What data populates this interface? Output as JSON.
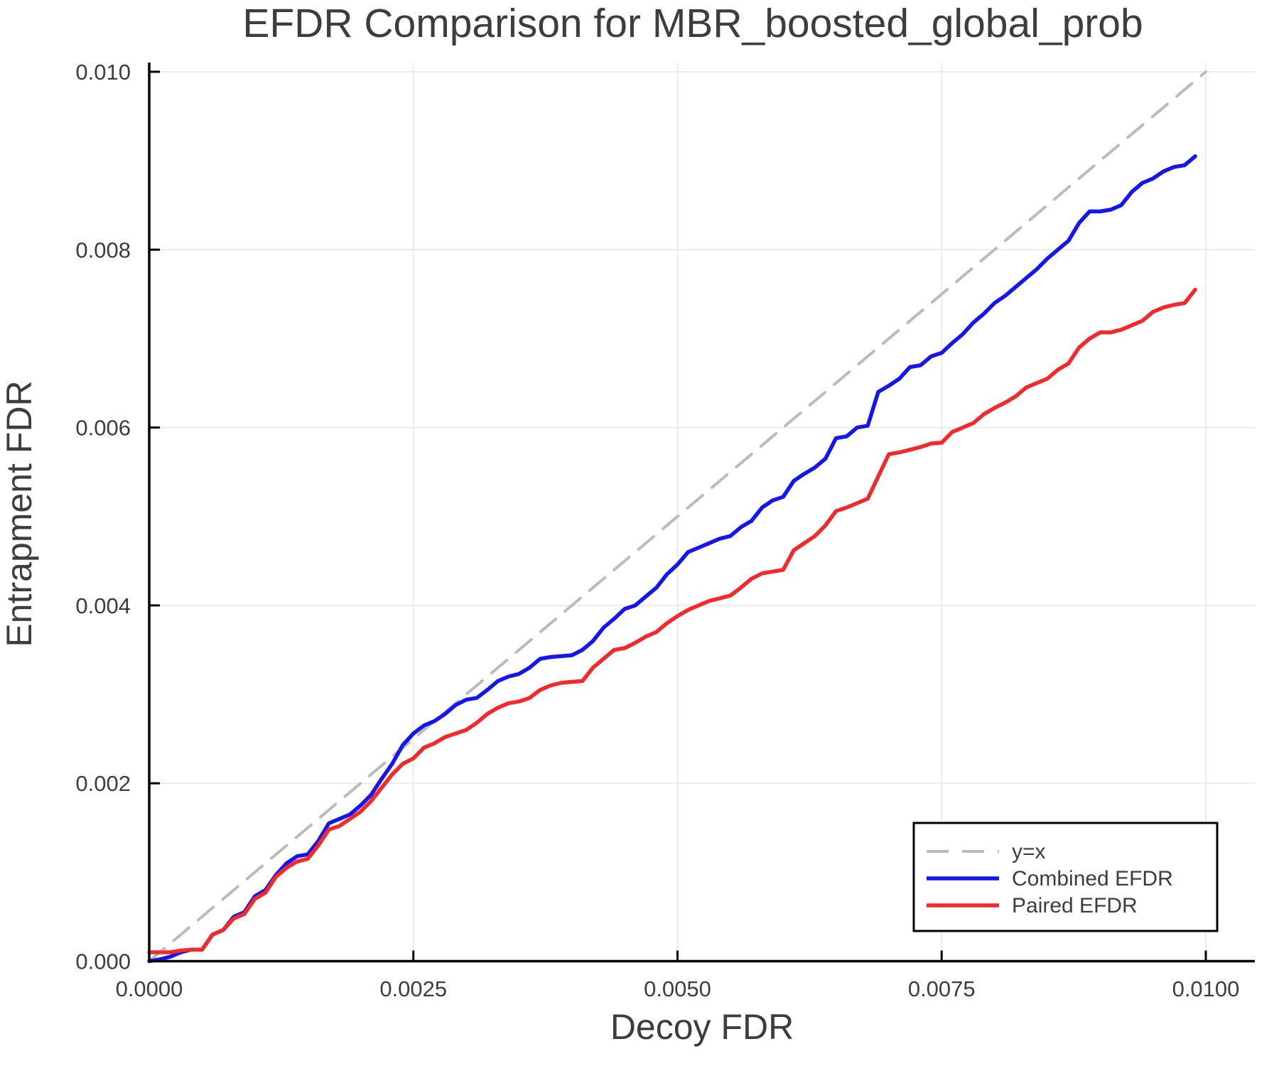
{
  "chart_data": {
    "type": "line",
    "title": "EFDR Comparison for MBR_boosted_global_prob",
    "xlabel": "Decoy FDR",
    "ylabel": "Entrapment FDR",
    "xlim": [
      0.0,
      0.01
    ],
    "ylim": [
      0.0,
      0.01
    ],
    "grid": true,
    "x_ticks": [
      0.0,
      0.0025,
      0.005,
      0.0075,
      0.01
    ],
    "x_tick_labels": [
      "0.0000",
      "0.0025",
      "0.0050",
      "0.0075",
      "0.0100"
    ],
    "y_ticks": [
      0.0,
      0.002,
      0.004,
      0.006,
      0.008,
      0.01
    ],
    "y_tick_labels": [
      "0.000",
      "0.002",
      "0.004",
      "0.006",
      "0.008",
      "0.010"
    ],
    "style": {
      "grid_color": "#eaeaea",
      "spine_color": "#000000",
      "text_color": "#3d3d3d",
      "diagonal_color": "#bbbbbb",
      "combined_color": "#1515f0",
      "paired_color": "#f42a2a",
      "legend_border_color": "#000000",
      "legend_bg_color": "#ffffff"
    },
    "legend": {
      "position": "lower right",
      "entries": [
        {
          "label": "y=x",
          "color": "#bbbbbb",
          "dash": true
        },
        {
          "label": "Combined EFDR",
          "color": "#1515f0",
          "dash": false
        },
        {
          "label": "Paired EFDR",
          "color": "#f42a2a",
          "dash": false
        }
      ]
    },
    "x": [
      0.0,
      0.0001,
      0.0002,
      0.0003,
      0.0004,
      0.0005,
      0.0006,
      0.0007,
      0.0008,
      0.0009,
      0.001,
      0.0011,
      0.0012,
      0.0013,
      0.0014,
      0.0015,
      0.0016,
      0.0017,
      0.0018,
      0.0019,
      0.002,
      0.0021,
      0.0022,
      0.0023,
      0.0024,
      0.0025,
      0.0026,
      0.0027,
      0.0028,
      0.0029,
      0.003,
      0.0031,
      0.0032,
      0.0033,
      0.0034,
      0.0035,
      0.0036,
      0.0037,
      0.0038,
      0.0039,
      0.004,
      0.0041,
      0.0042,
      0.0043,
      0.0044,
      0.0045,
      0.0046,
      0.0047,
      0.0048,
      0.0049,
      0.005,
      0.0051,
      0.0052,
      0.0053,
      0.0054,
      0.0055,
      0.0056,
      0.0057,
      0.0058,
      0.0059,
      0.006,
      0.0061,
      0.0062,
      0.0063,
      0.0064,
      0.0065,
      0.0066,
      0.0067,
      0.0068,
      0.0069,
      0.007,
      0.0071,
      0.0072,
      0.0073,
      0.0074,
      0.0075,
      0.0076,
      0.0077,
      0.0078,
      0.0079,
      0.008,
      0.0081,
      0.0082,
      0.0083,
      0.0084,
      0.0085,
      0.0086,
      0.0087,
      0.0088,
      0.0089,
      0.009,
      0.0091,
      0.0092,
      0.0093,
      0.0094,
      0.0095,
      0.0096,
      0.0097,
      0.0098,
      0.0099
    ],
    "series": [
      {
        "name": "y=x",
        "dash": true,
        "width": 4,
        "color": "#bbbbbb",
        "x": [
          0.0,
          0.01
        ],
        "y": [
          0.0,
          0.01
        ]
      },
      {
        "name": "Combined EFDR",
        "dash": false,
        "width": 5.5,
        "color": "#1515f0",
        "y": [
          0.0,
          2e-05,
          5e-05,
          0.0001,
          0.00013,
          0.00013,
          0.0003,
          0.00035,
          0.0005,
          0.00055,
          0.00073,
          0.0008,
          0.00097,
          0.0011,
          0.00118,
          0.0012,
          0.00135,
          0.00155,
          0.0016,
          0.00165,
          0.00175,
          0.00187,
          0.00205,
          0.00222,
          0.00243,
          0.00256,
          0.00265,
          0.0027,
          0.00278,
          0.00288,
          0.00294,
          0.00296,
          0.00305,
          0.00315,
          0.0032,
          0.00323,
          0.0033,
          0.0034,
          0.00342,
          0.00343,
          0.00344,
          0.0035,
          0.0036,
          0.00375,
          0.00385,
          0.00396,
          0.004,
          0.0041,
          0.0042,
          0.00435,
          0.00446,
          0.0046,
          0.00465,
          0.0047,
          0.00475,
          0.00478,
          0.00488,
          0.00495,
          0.0051,
          0.00518,
          0.00522,
          0.0054,
          0.00548,
          0.00555,
          0.00565,
          0.00588,
          0.0059,
          0.006,
          0.00602,
          0.0064,
          0.00647,
          0.00655,
          0.00668,
          0.0067,
          0.0068,
          0.00684,
          0.00695,
          0.00705,
          0.00718,
          0.00728,
          0.0074,
          0.00748,
          0.00758,
          0.00768,
          0.00778,
          0.0079,
          0.008,
          0.0081,
          0.0083,
          0.00843,
          0.00843,
          0.00845,
          0.0085,
          0.00865,
          0.00875,
          0.0088,
          0.00888,
          0.00893,
          0.00895,
          0.00905
        ]
      },
      {
        "name": "Paired EFDR",
        "dash": false,
        "width": 5.5,
        "color": "#f42a2a",
        "y": [
          0.0001,
          0.0001,
          0.0001,
          0.00012,
          0.00013,
          0.00013,
          0.0003,
          0.00035,
          0.00048,
          0.00053,
          0.0007,
          0.00077,
          0.00095,
          0.00105,
          0.00112,
          0.00115,
          0.0013,
          0.00148,
          0.00152,
          0.0016,
          0.00168,
          0.0018,
          0.00195,
          0.0021,
          0.00222,
          0.00228,
          0.0024,
          0.00245,
          0.00252,
          0.00256,
          0.0026,
          0.00268,
          0.00278,
          0.00285,
          0.0029,
          0.00292,
          0.00296,
          0.00305,
          0.0031,
          0.00313,
          0.00314,
          0.00315,
          0.0033,
          0.0034,
          0.0035,
          0.00352,
          0.00358,
          0.00365,
          0.0037,
          0.0038,
          0.00388,
          0.00395,
          0.004,
          0.00405,
          0.00408,
          0.00411,
          0.0042,
          0.0043,
          0.00436,
          0.00438,
          0.0044,
          0.00462,
          0.0047,
          0.00478,
          0.0049,
          0.00506,
          0.0051,
          0.00515,
          0.0052,
          0.00545,
          0.0057,
          0.00572,
          0.00575,
          0.00578,
          0.00582,
          0.00583,
          0.00595,
          0.006,
          0.00605,
          0.00615,
          0.00622,
          0.00628,
          0.00635,
          0.00645,
          0.0065,
          0.00655,
          0.00665,
          0.00672,
          0.0069,
          0.007,
          0.00707,
          0.00707,
          0.0071,
          0.00715,
          0.0072,
          0.0073,
          0.00735,
          0.00738,
          0.0074,
          0.00755
        ]
      }
    ]
  }
}
